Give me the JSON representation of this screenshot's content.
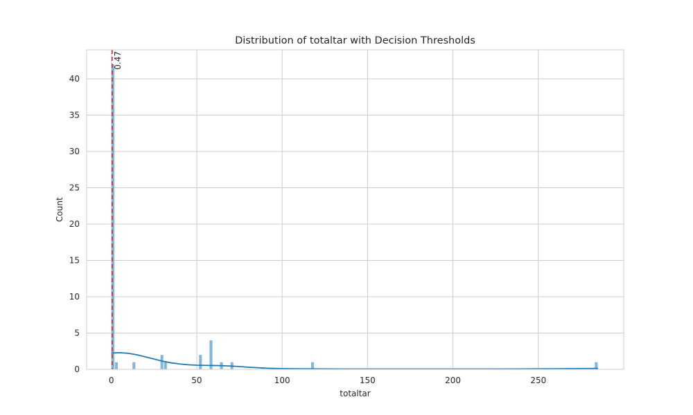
{
  "chart_data": {
    "type": "histogram",
    "title": "Distribution of totaltar with Decision Thresholds",
    "xlabel": "totaltar",
    "ylabel": "Count",
    "xlim": [
      -14.5,
      300
    ],
    "ylim": [
      0,
      44
    ],
    "xticks": [
      0,
      50,
      100,
      150,
      200,
      250
    ],
    "yticks": [
      0,
      5,
      10,
      15,
      20,
      25,
      30,
      35,
      40
    ],
    "grid": true,
    "bin_width": 2.05,
    "bar_color": "#5a9ecf",
    "kde_color": "#1f77b4",
    "threshold_color": "#d62728",
    "bins": [
      {
        "x0": 0.0,
        "count": 42
      },
      {
        "x0": 2.05,
        "count": 1
      },
      {
        "x0": 12.3,
        "count": 1
      },
      {
        "x0": 28.7,
        "count": 2
      },
      {
        "x0": 30.75,
        "count": 1
      },
      {
        "x0": 51.25,
        "count": 2
      },
      {
        "x0": 57.4,
        "count": 4
      },
      {
        "x0": 63.55,
        "count": 1
      },
      {
        "x0": 69.7,
        "count": 1
      },
      {
        "x0": 116.85,
        "count": 1
      },
      {
        "x0": 283.0,
        "count": 1
      }
    ],
    "kde": {
      "x": [
        0,
        5,
        10,
        15,
        20,
        25,
        30,
        35,
        40,
        45,
        50,
        55,
        60,
        65,
        70,
        75,
        80,
        90,
        100,
        110,
        120,
        130,
        140,
        160,
        180,
        200,
        220,
        240,
        260,
        270,
        280,
        285
      ],
      "y": [
        2.25,
        2.3,
        2.2,
        2.0,
        1.72,
        1.42,
        1.12,
        0.9,
        0.74,
        0.63,
        0.57,
        0.55,
        0.53,
        0.5,
        0.45,
        0.38,
        0.3,
        0.17,
        0.1,
        0.08,
        0.07,
        0.06,
        0.05,
        0.04,
        0.04,
        0.04,
        0.05,
        0.06,
        0.08,
        0.1,
        0.12,
        0.13
      ]
    },
    "threshold": {
      "value": 0.47,
      "label": "0.47"
    }
  }
}
